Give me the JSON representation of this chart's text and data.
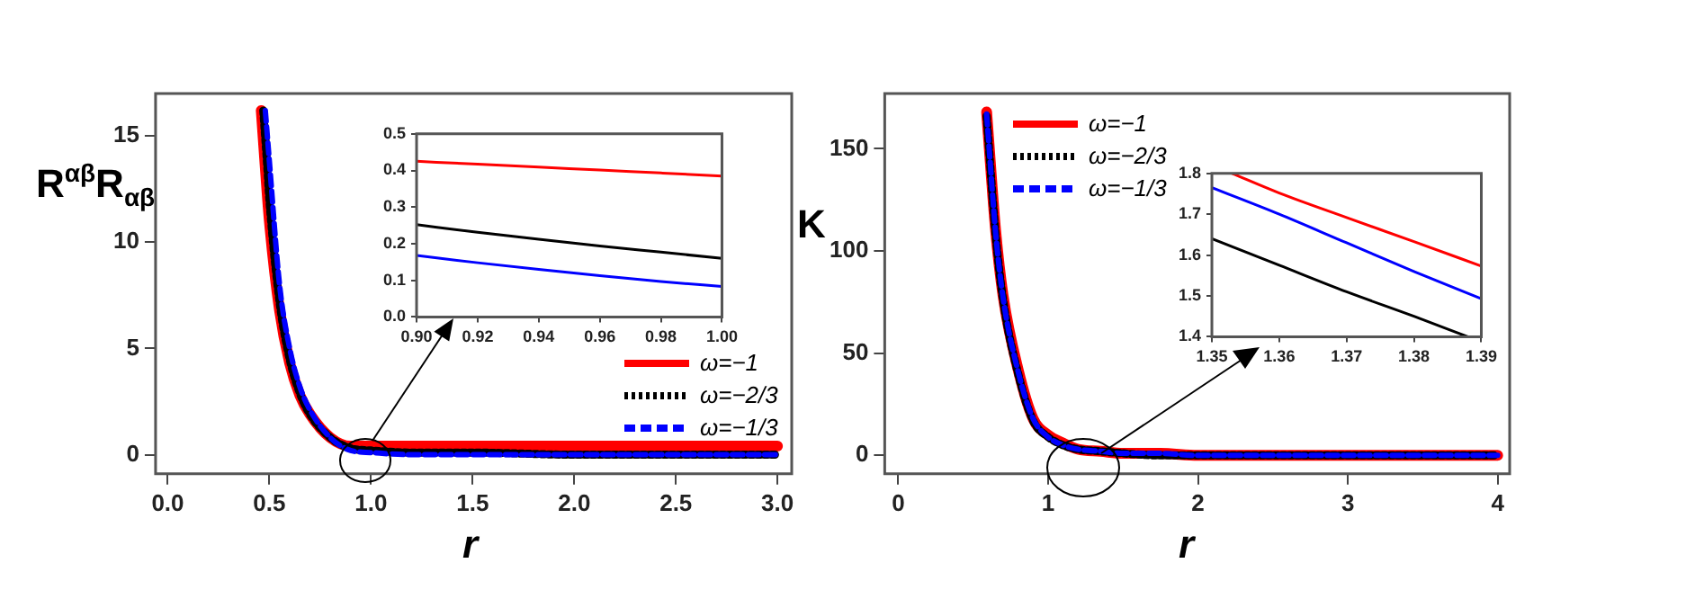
{
  "chart_data": [
    {
      "type": "line",
      "xlabel": "r",
      "ylabel": "R$^{αβ}$R$_{αβ}$",
      "xlim": [
        -0.06,
        3.07
      ],
      "ylim": [
        -0.9,
        17
      ],
      "xticks": [
        {
          "value": 0,
          "label": "0.0"
        },
        0.5,
        {
          "value": 1,
          "label": "1.0"
        },
        1.5,
        {
          "value": 2,
          "label": "2.0"
        },
        2.5,
        {
          "value": 3,
          "label": "3.0"
        }
      ],
      "yticks": [
        0,
        5,
        10,
        15
      ],
      "grid": false,
      "legend": "right",
      "marker": "none",
      "series": [
        {
          "name": "ω=−1",
          "color": "#ff0000",
          "line_style": "solid",
          "x": [
            0.46,
            0.48,
            0.5,
            0.55,
            0.6,
            0.65,
            0.7,
            0.8,
            0.9,
            1.0,
            1.2,
            1.5,
            2,
            2.5,
            3
          ],
          "values": [
            16.2,
            13.5,
            11.0,
            6.8,
            4.3,
            2.8,
            1.9,
            0.8,
            0.4,
            0.4,
            0.4,
            0.4,
            0.4,
            0.4,
            0.4
          ]
        },
        {
          "name": "ω=−2/3",
          "color": "#000000",
          "line_style": "dotted",
          "x": [
            0.47,
            0.49,
            0.5,
            0.55,
            0.6,
            0.65,
            0.7,
            0.8,
            0.9,
            1.0,
            1.2,
            1.5,
            2,
            2.5,
            3
          ],
          "values": [
            16.2,
            13.5,
            12,
            7.2,
            4.5,
            2.9,
            1.9,
            0.8,
            0.3,
            0.2,
            0.1,
            0.1,
            0,
            0,
            0
          ]
        },
        {
          "name": "ω=−1/3",
          "color": "#0000ff",
          "line_style": "dashed",
          "x": [
            0.48,
            0.5,
            0.55,
            0.6,
            0.65,
            0.7,
            0.8,
            0.9,
            1.0,
            1.2,
            1.5,
            2,
            2.5,
            3
          ],
          "values": [
            16.2,
            13.8,
            8.0,
            5.0,
            3.2,
            2.1,
            0.8,
            0.2,
            0.1,
            0,
            0,
            0,
            0,
            0
          ]
        }
      ]
    },
    {
      "type": "line",
      "xlim": [
        0.9,
        1.0
      ],
      "ylim": [
        0,
        0.5
      ],
      "xticks": [
        {
          "value": 0.9,
          "label": "0.90"
        },
        0.92,
        0.94,
        0.96,
        0.98,
        {
          "value": 1.0,
          "label": "1.00"
        }
      ],
      "yticks": [
        {
          "value": 0,
          "label": "0.0"
        },
        0.1,
        0.2,
        0.3,
        0.4,
        0.5
      ],
      "grid": false,
      "marker": "none",
      "series": [
        {
          "color": "#ff0000",
          "line_style": "solid",
          "x": [
            0.9,
            0.92,
            0.94,
            0.96,
            0.98,
            1.0
          ],
          "values": [
            0.425,
            0.417,
            0.409,
            0.401,
            0.393,
            0.385
          ]
        },
        {
          "color": "#000000",
          "line_style": "solid",
          "x": [
            0.9,
            0.92,
            0.94,
            0.96,
            0.98,
            1.0
          ],
          "values": [
            0.252,
            0.231,
            0.212,
            0.194,
            0.177,
            0.16
          ]
        },
        {
          "color": "#0000ff",
          "line_style": "solid",
          "x": [
            0.9,
            0.92,
            0.94,
            0.96,
            0.98,
            1.0
          ],
          "values": [
            0.168,
            0.148,
            0.13,
            0.113,
            0.097,
            0.083
          ]
        }
      ]
    },
    {
      "type": "line",
      "xlabel": "r",
      "ylabel": "K",
      "xlim": [
        -0.09,
        4.08
      ],
      "ylim": [
        -9,
        177
      ],
      "xticks": [
        0,
        1,
        2,
        3,
        4
      ],
      "yticks": [
        0,
        50,
        100,
        150
      ],
      "grid": false,
      "legend": "top left",
      "marker": "none",
      "series": [
        {
          "name": "ω=−1",
          "color": "#ff0000",
          "line_style": "solid",
          "x": [
            0.59,
            0.6,
            0.65,
            0.7,
            0.8,
            0.9,
            1.0,
            1.1,
            1.2,
            1.35,
            1.5,
            1.75,
            2,
            2.5,
            3,
            3.5,
            4
          ],
          "values": [
            168,
            158,
            110,
            78,
            42,
            18,
            10,
            6,
            3,
            2,
            1,
            1,
            0,
            0,
            0,
            0,
            0
          ]
        },
        {
          "name": "ω=−2/3",
          "color": "#000000",
          "line_style": "dotted",
          "x": [
            0.59,
            0.6,
            0.65,
            0.7,
            0.8,
            0.9,
            1.0,
            1.1,
            1.2,
            1.35,
            1.5,
            1.75,
            2,
            2.5,
            3,
            3.5,
            4
          ],
          "values": [
            166,
            156,
            108,
            76,
            40,
            17,
            9,
            5,
            3,
            2,
            1,
            0,
            0,
            0,
            0,
            0,
            0
          ]
        },
        {
          "name": "ω=−1/3",
          "color": "#0000ff",
          "line_style": "dashed",
          "x": [
            0.59,
            0.6,
            0.65,
            0.7,
            0.8,
            0.9,
            1.0,
            1.1,
            1.2,
            1.35,
            1.5,
            1.75,
            2,
            2.5,
            3,
            3.5,
            4
          ],
          "values": [
            167,
            157,
            109,
            77,
            41,
            18,
            9,
            5,
            3,
            2,
            1,
            1,
            0,
            0,
            0,
            0,
            0
          ]
        }
      ]
    },
    {
      "type": "line",
      "xlim": [
        1.35,
        1.39
      ],
      "ylim": [
        1.4,
        1.8
      ],
      "xticks": [
        1.35,
        1.36,
        1.37,
        1.38,
        1.39
      ],
      "yticks": [
        1.4,
        1.5,
        1.6,
        1.7,
        1.8
      ],
      "grid": false,
      "marker": "none",
      "series": [
        {
          "color": "#ff0000",
          "line_style": "solid",
          "x": [
            1.353,
            1.36,
            1.37,
            1.38,
            1.39
          ],
          "values": [
            1.8,
            1.752,
            1.692,
            1.633,
            1.573
          ]
        },
        {
          "color": "#0000ff",
          "line_style": "solid",
          "x": [
            1.35,
            1.36,
            1.37,
            1.38,
            1.39
          ],
          "values": [
            1.765,
            1.7,
            1.63,
            1.56,
            1.493
          ]
        },
        {
          "color": "#000000",
          "line_style": "solid",
          "x": [
            1.35,
            1.36,
            1.37,
            1.38,
            1.388
          ],
          "values": [
            1.64,
            1.575,
            1.51,
            1.45,
            1.4
          ]
        }
      ]
    }
  ]
}
